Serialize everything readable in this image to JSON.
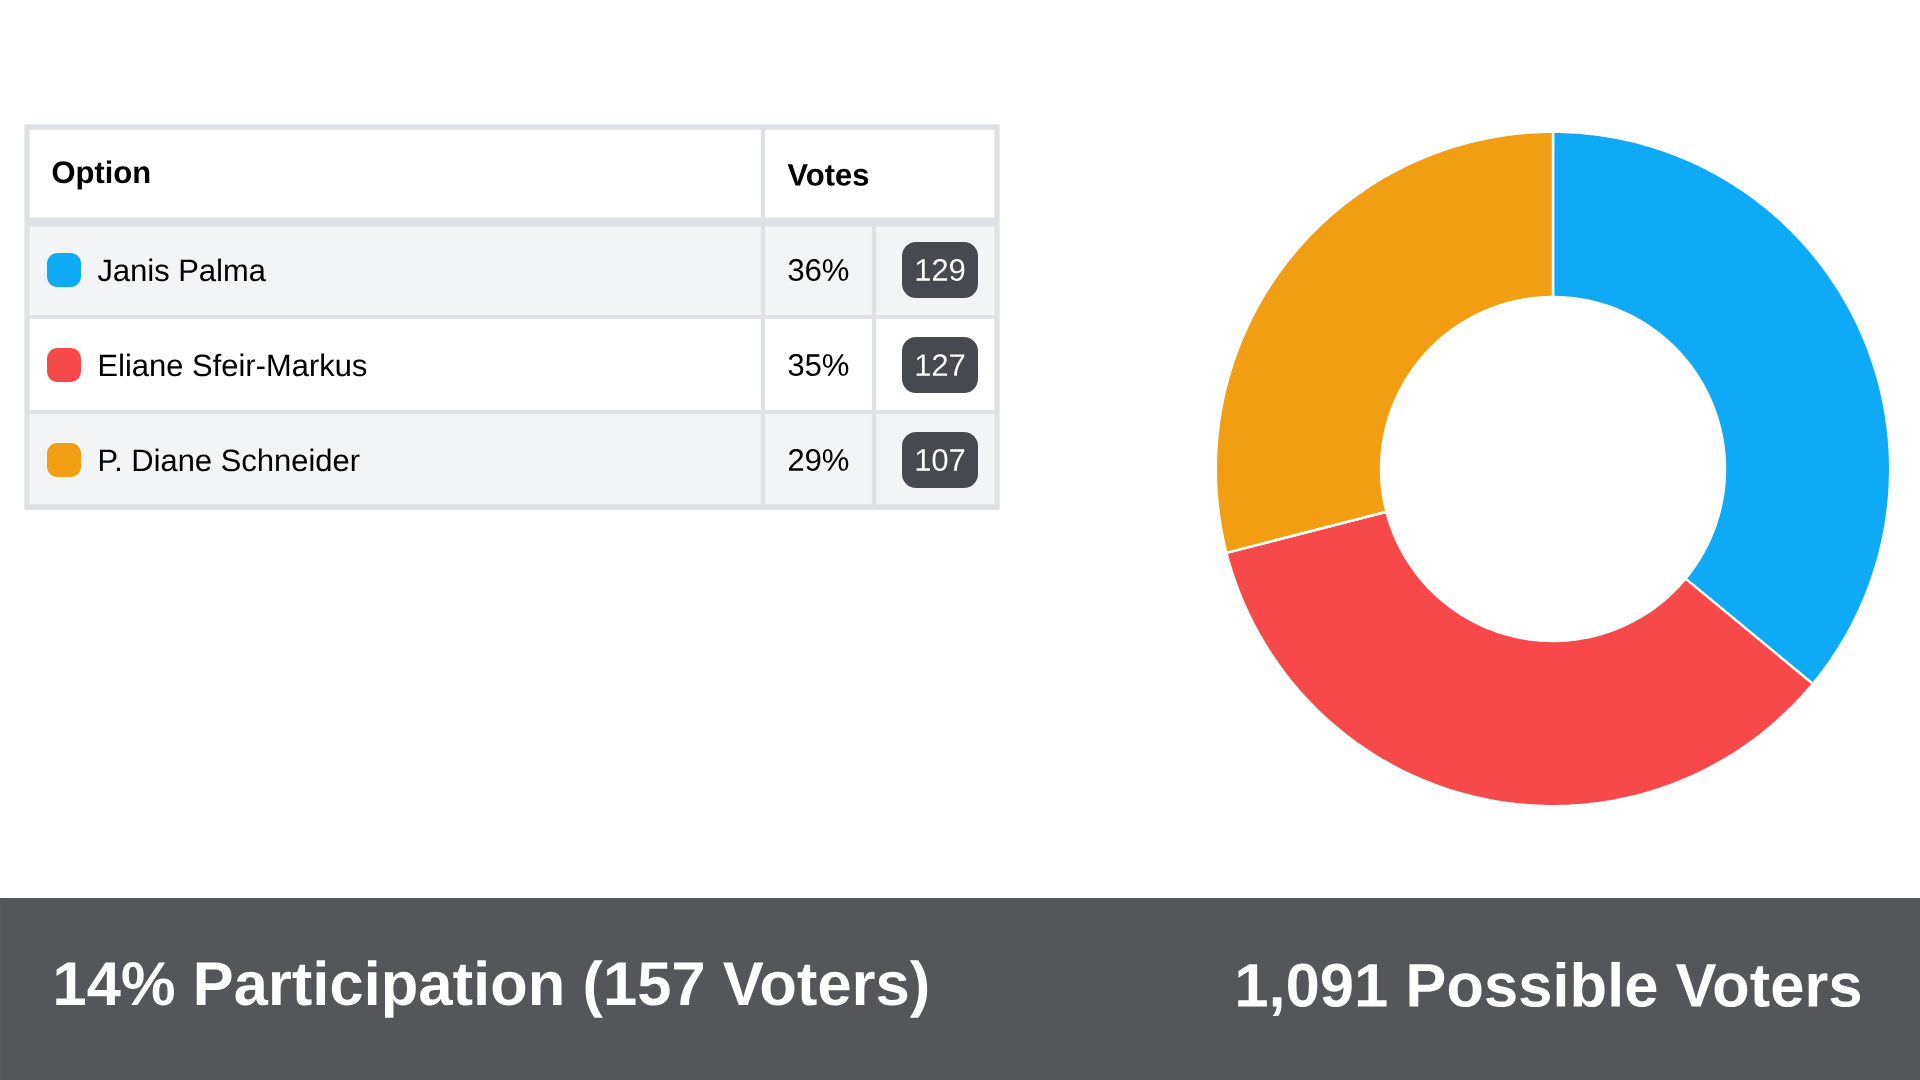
{
  "chart_data": {
    "type": "donut",
    "categories": [
      "Janis Palma",
      "Eliane Sfeir-Markus",
      "P. Diane Schneider"
    ],
    "values": [
      36,
      35,
      29
    ],
    "colors": [
      "#0eaaf5",
      "#f7484a",
      "#f29e12"
    ],
    "value_labels": [
      "36%",
      "35%",
      "29%"
    ],
    "legend": "left",
    "legend_title": "Option",
    "annotations": [
      "Votes",
      "14% Participation (157 Voters)",
      "1,091 Possible Voters",
      {
        "text": "129"
      },
      {
        "text": "127"
      },
      {
        "text": "107"
      }
    ]
  }
}
